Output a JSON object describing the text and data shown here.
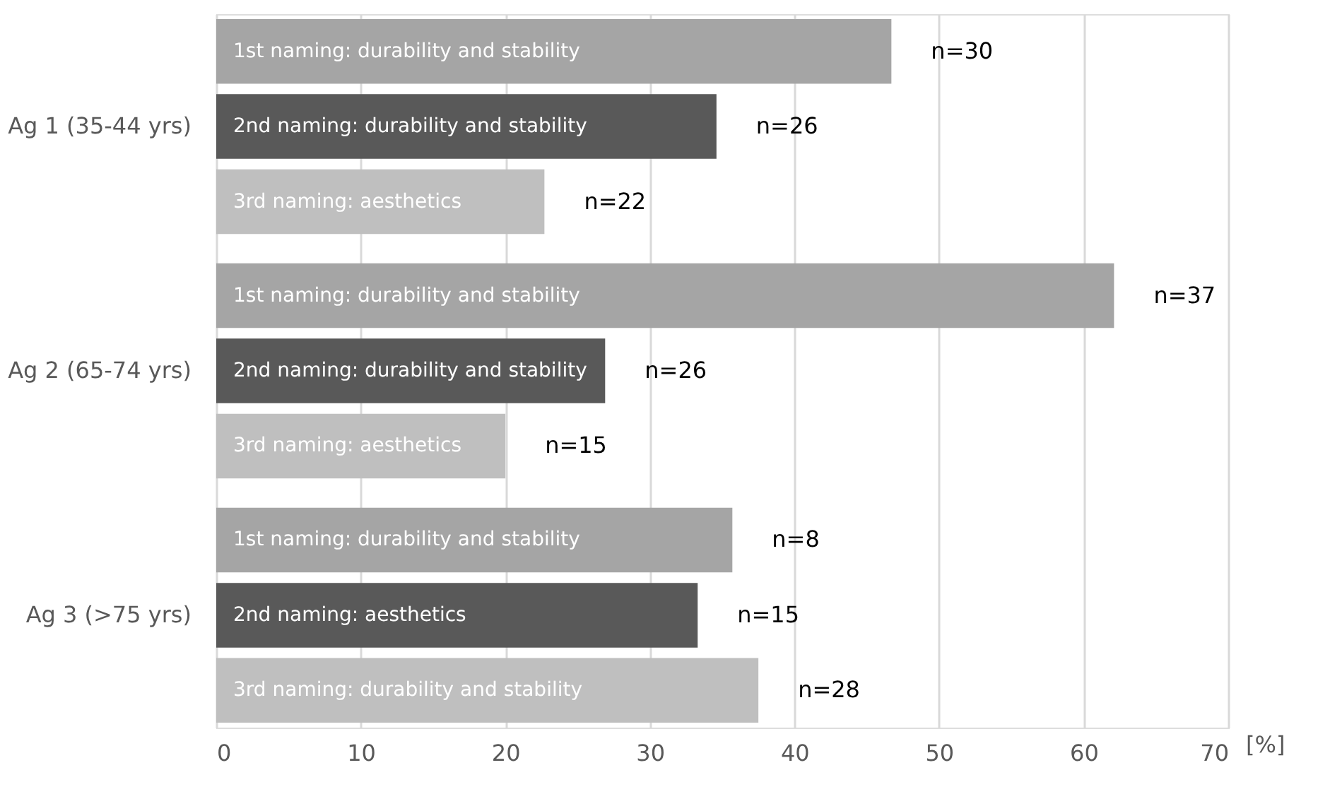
{
  "chart_data": {
    "type": "bar",
    "orientation": "horizontal",
    "xlabel": "[%]",
    "categories": [
      "Ag 1 (35-44 yrs)",
      "Ag 2 (65-74 yrs)",
      "Ag 3 (>75 yrs)"
    ],
    "series": [
      {
        "color": "#a5a5a5",
        "values": [
          46.7,
          62.1,
          35.7
        ]
      },
      {
        "color": "#595959",
        "values": [
          34.6,
          26.9,
          33.3
        ]
      },
      {
        "color": "#bfbfbf",
        "values": [
          22.7,
          20.0,
          37.5
        ]
      }
    ],
    "annotations": [
      "1st naming: durability and stability",
      "2nd naming: durability and stability",
      "3rd naming: aesthetics",
      "1st naming: durability and stability",
      "2nd naming: durability and stability",
      "3rd naming: aesthetics",
      "1st naming: durability and stability",
      "2nd naming: aesthetics",
      "3rd naming: durability and stability",
      "n=30",
      "n=26",
      "n=22",
      "n=37",
      "n=26",
      "n=15",
      "n=8",
      "n=15",
      "n=28"
    ],
    "xlim": [
      0,
      70
    ],
    "xticks": [
      0,
      10,
      20,
      30,
      40,
      50,
      60,
      70
    ],
    "grid": "x"
  }
}
